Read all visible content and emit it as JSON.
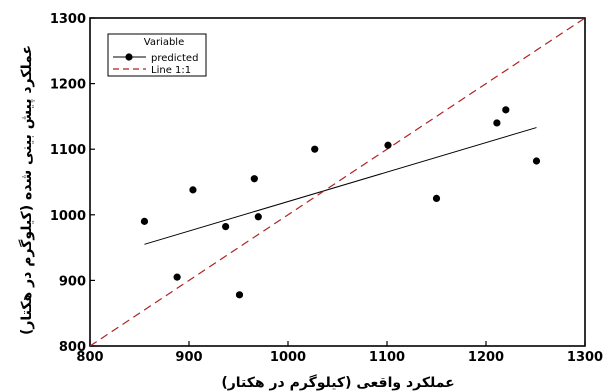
{
  "chart_data": {
    "type": "scatter",
    "xlabel": "عملکرد واقعی (کیلوگرم در هکتار)",
    "ylabel": "عملکرد پیش بینی شده (کیلوگرم در هکتار)",
    "xlim": [
      800,
      1300
    ],
    "ylim": [
      800,
      1300
    ],
    "xticks": [
      800,
      900,
      1000,
      1100,
      1200,
      1300
    ],
    "yticks": [
      800,
      900,
      1000,
      1100,
      1200,
      1300
    ],
    "grid": false,
    "legend": {
      "position": "top-left",
      "title": "Variable",
      "entries": [
        "predicted",
        "Line 1:1"
      ]
    },
    "series": [
      {
        "name": "predicted",
        "type": "scatter",
        "color": "#000000",
        "x": [
          855,
          888,
          904,
          937,
          951,
          966,
          970,
          1027,
          1101,
          1150,
          1211,
          1220,
          1251
        ],
        "y": [
          990,
          905,
          1038,
          982,
          878,
          1055,
          997,
          1100,
          1106,
          1025,
          1140,
          1160,
          1082
        ]
      },
      {
        "name": "trend",
        "type": "line",
        "color": "#000000",
        "x": [
          855,
          1251
        ],
        "y": [
          955,
          1133
        ]
      },
      {
        "name": "Line 1:1",
        "type": "line",
        "dash": true,
        "color": "#b22222",
        "x": [
          800,
          1300
        ],
        "y": [
          800,
          1300
        ]
      }
    ]
  }
}
